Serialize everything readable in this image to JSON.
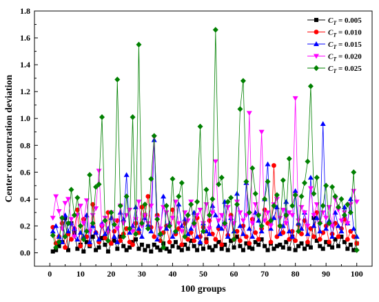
{
  "chart_data": {
    "type": "line",
    "xlabel": "100 groups",
    "ylabel": "Center concentration deviation",
    "xlim": [
      -5,
      105
    ],
    "ylim": [
      -0.1,
      1.8
    ],
    "xticks": [
      0,
      10,
      20,
      30,
      40,
      50,
      60,
      70,
      80,
      90,
      100
    ],
    "yticks": [
      0.0,
      0.2,
      0.4,
      0.6,
      0.8,
      1.0,
      1.2,
      1.4,
      1.6,
      1.8
    ],
    "ytick_labels": [
      "0.0",
      "0.2",
      "0.4",
      "0.6",
      "0.8",
      "1.0",
      "1.2",
      "1.4",
      "1.6",
      "1.8"
    ],
    "legend_position": "top-right",
    "grid": false,
    "x": [
      1,
      2,
      3,
      4,
      5,
      6,
      7,
      8,
      9,
      10,
      11,
      12,
      13,
      14,
      15,
      16,
      17,
      18,
      19,
      20,
      21,
      22,
      23,
      24,
      25,
      26,
      27,
      28,
      29,
      30,
      31,
      32,
      33,
      34,
      35,
      36,
      37,
      38,
      39,
      40,
      41,
      42,
      43,
      44,
      45,
      46,
      47,
      48,
      49,
      50,
      51,
      52,
      53,
      54,
      55,
      56,
      57,
      58,
      59,
      60,
      61,
      62,
      63,
      64,
      65,
      66,
      67,
      68,
      69,
      70,
      71,
      72,
      73,
      74,
      75,
      76,
      77,
      78,
      79,
      80,
      81,
      82,
      83,
      84,
      85,
      86,
      87,
      88,
      89,
      90,
      91,
      92,
      93,
      94,
      95,
      96,
      97,
      98,
      99,
      100
    ],
    "series": [
      {
        "name": "C_T = 0.005",
        "legend_main": "C",
        "legend_sub": "T",
        "legend_value": " = 0.005",
        "color": "#000000",
        "marker": "square",
        "values": [
          0.01,
          0.02,
          0.05,
          0.08,
          0.26,
          0.02,
          0.22,
          0.15,
          0.03,
          0.06,
          0.01,
          0.08,
          0.05,
          0.12,
          0.02,
          0.04,
          0.11,
          0.06,
          0.01,
          0.07,
          0.09,
          0.03,
          0.12,
          0.05,
          0.02,
          0.04,
          0.08,
          0.1,
          0.03,
          0.06,
          0.02,
          0.05,
          0.01,
          0.06,
          0.04,
          0.02,
          0.07,
          0.03,
          0.01,
          0.05,
          0.08,
          0.04,
          0.02,
          0.06,
          0.03,
          0.09,
          0.05,
          0.02,
          0.07,
          0.03,
          0.1,
          0.04,
          0.02,
          0.05,
          0.08,
          0.03,
          0.06,
          0.02,
          0.09,
          0.04,
          0.12,
          0.05,
          0.02,
          0.07,
          0.04,
          0.03,
          0.08,
          0.06,
          0.1,
          0.05,
          0.02,
          0.07,
          0.03,
          0.05,
          0.06,
          0.04,
          0.08,
          0.03,
          0.12,
          0.02,
          0.05,
          0.07,
          0.03,
          0.06,
          0.04,
          0.26,
          0.09,
          0.05,
          0.03,
          0.08,
          0.06,
          0.04,
          0.1,
          0.05,
          0.12,
          0.08,
          0.03,
          0.06,
          0.02,
          0.07
        ]
      },
      {
        "name": "C_T = 0.010",
        "legend_main": "C",
        "legend_sub": "T",
        "legend_value": " = 0.010",
        "color": "#ff0000",
        "marker": "circle",
        "values": [
          0.19,
          0.07,
          0.12,
          0.22,
          0.04,
          0.14,
          0.1,
          0.18,
          0.32,
          0.05,
          0.25,
          0.12,
          0.06,
          0.36,
          0.15,
          0.08,
          0.2,
          0.11,
          0.3,
          0.07,
          0.16,
          0.24,
          0.09,
          0.14,
          0.18,
          0.08,
          0.06,
          0.22,
          0.15,
          0.34,
          0.28,
          0.42,
          0.19,
          0.12,
          0.28,
          0.09,
          0.15,
          0.2,
          0.08,
          0.32,
          0.14,
          0.18,
          0.06,
          0.22,
          0.1,
          0.15,
          0.09,
          0.26,
          0.12,
          0.19,
          0.08,
          0.24,
          0.14,
          0.1,
          0.18,
          0.06,
          0.21,
          0.13,
          0.28,
          0.1,
          0.16,
          0.09,
          0.2,
          0.12,
          0.07,
          0.25,
          0.15,
          0.1,
          0.18,
          0.32,
          0.22,
          0.08,
          0.65,
          0.12,
          0.2,
          0.15,
          0.28,
          0.1,
          0.16,
          0.09,
          0.21,
          0.14,
          0.24,
          0.08,
          0.18,
          0.12,
          0.3,
          0.1,
          0.15,
          0.2,
          0.08,
          0.14,
          0.22,
          0.12,
          0.18,
          0.25,
          0.1,
          0.16,
          0.12,
          0.07
        ]
      },
      {
        "name": "C_T = 0.015",
        "legend_main": "C",
        "legend_sub": "T",
        "legend_value": " = 0.015",
        "color": "#0000ff",
        "marker": "triangle",
        "values": [
          0.16,
          0.2,
          0.12,
          0.08,
          0.28,
          0.16,
          0.22,
          0.18,
          0.1,
          0.15,
          0.12,
          0.28,
          0.08,
          0.2,
          0.15,
          0.1,
          0.22,
          0.14,
          0.18,
          0.26,
          0.12,
          0.08,
          0.3,
          0.25,
          0.58,
          0.15,
          0.2,
          0.34,
          0.18,
          0.12,
          0.26,
          0.21,
          0.16,
          0.84,
          0.1,
          0.14,
          0.42,
          0.18,
          0.22,
          0.12,
          0.16,
          0.36,
          0.2,
          0.25,
          0.14,
          0.18,
          0.3,
          0.12,
          0.08,
          0.22,
          0.16,
          0.14,
          0.35,
          0.28,
          0.2,
          0.18,
          0.38,
          0.12,
          0.26,
          0.16,
          0.44,
          0.2,
          0.14,
          0.52,
          0.18,
          0.12,
          0.3,
          0.24,
          0.16,
          0.4,
          0.66,
          0.18,
          0.26,
          0.34,
          0.14,
          0.2,
          0.38,
          0.16,
          0.12,
          0.46,
          0.22,
          0.18,
          0.3,
          0.14,
          0.56,
          0.2,
          0.26,
          0.16,
          0.96,
          0.18,
          0.24,
          0.12,
          0.3,
          0.2,
          0.16,
          0.34,
          0.22,
          0.4,
          0.18,
          0.12
        ]
      },
      {
        "name": "C_T = 0.020",
        "legend_main": "C",
        "legend_sub": "T",
        "legend_value": " = 0.020",
        "color": "#ff00ff",
        "marker": "triangle-down",
        "values": [
          0.26,
          0.42,
          0.31,
          0.18,
          0.37,
          0.4,
          0.25,
          0.12,
          0.28,
          0.35,
          0.22,
          0.39,
          0.16,
          0.28,
          0.33,
          0.61,
          0.2,
          0.26,
          0.15,
          0.3,
          0.24,
          0.18,
          0.35,
          0.22,
          0.28,
          0.32,
          0.16,
          0.25,
          0.38,
          0.2,
          0.28,
          0.22,
          0.35,
          0.86,
          0.26,
          0.18,
          0.34,
          0.3,
          0.2,
          0.26,
          0.38,
          0.22,
          0.16,
          0.3,
          0.24,
          0.38,
          0.2,
          0.28,
          0.32,
          0.22,
          0.36,
          0.18,
          0.3,
          0.68,
          0.24,
          0.28,
          0.2,
          0.34,
          0.26,
          0.22,
          0.38,
          0.3,
          0.24,
          0.28,
          1.04,
          0.22,
          0.36,
          0.28,
          0.9,
          0.24,
          0.3,
          0.2,
          0.36,
          0.4,
          0.26,
          0.32,
          0.22,
          0.3,
          0.28,
          1.15,
          0.24,
          0.34,
          0.3,
          0.2,
          0.48,
          0.28,
          0.36,
          0.22,
          0.3,
          0.26,
          0.34,
          0.2,
          0.4,
          0.32,
          0.24,
          0.3,
          0.22,
          0.36,
          0.46,
          0.38
        ]
      },
      {
        "name": "C_T = 0.025",
        "legend_main": "C",
        "legend_sub": "T",
        "legend_value": " = 0.025",
        "color": "#008000",
        "marker": "diamond",
        "values": [
          0.13,
          0.04,
          0.08,
          0.26,
          0.12,
          0.22,
          0.47,
          0.28,
          0.41,
          0.2,
          0.1,
          0.16,
          0.58,
          0.22,
          0.49,
          0.51,
          1.01,
          0.24,
          0.09,
          0.3,
          0.21,
          1.29,
          0.35,
          0.12,
          0.42,
          0.18,
          1.01,
          0.14,
          1.55,
          0.22,
          0.36,
          0.18,
          0.55,
          0.87,
          0.25,
          0.14,
          0.04,
          0.35,
          0.2,
          0.55,
          0.16,
          0.42,
          0.52,
          0.12,
          0.28,
          0.36,
          0.22,
          0.38,
          0.94,
          0.16,
          0.47,
          0.28,
          0.4,
          1.66,
          0.51,
          0.56,
          0.22,
          0.38,
          0.41,
          0.1,
          0.36,
          1.07,
          1.28,
          0.53,
          0.3,
          0.63,
          0.44,
          0.28,
          0.2,
          0.4,
          0.53,
          0.24,
          0.35,
          0.43,
          0.2,
          0.54,
          0.28,
          0.7,
          0.35,
          0.43,
          0.16,
          0.42,
          0.52,
          0.68,
          1.24,
          0.44,
          0.56,
          0.22,
          0.35,
          0.5,
          0.22,
          0.49,
          0.42,
          0.34,
          0.4,
          0.28,
          0.36,
          0.3,
          0.6,
          0.02
        ]
      }
    ]
  }
}
